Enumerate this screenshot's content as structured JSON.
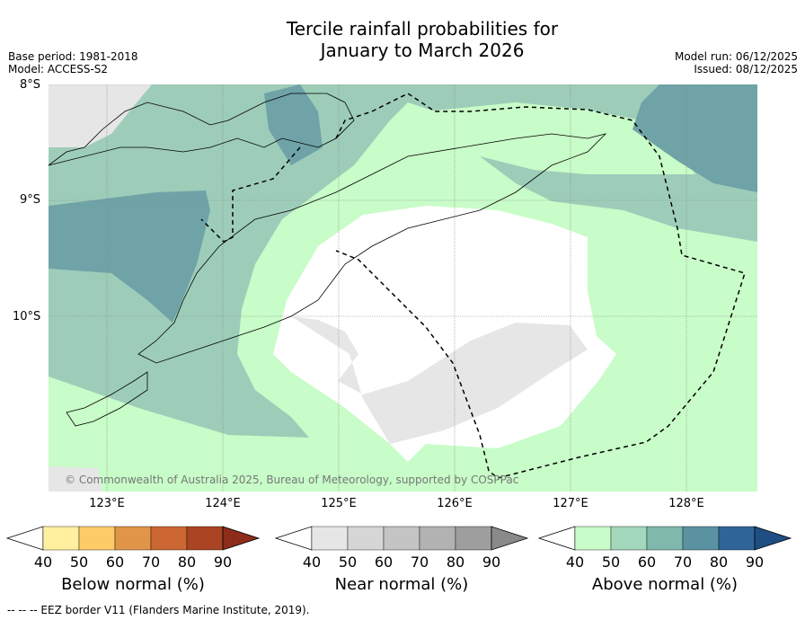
{
  "title_line1": "Tercile rainfall probabilities for",
  "title_line2": "January to March 2026",
  "base_period": "Base period: 1981-2018",
  "model": "Model: ACCESS-S2",
  "model_run": "Model run: 06/12/2025",
  "issued": "Issued: 08/12/2025",
  "lat_labels": [
    "8°S",
    "9°S",
    "10°S"
  ],
  "lon_labels": [
    "123°E",
    "124°E",
    "125°E",
    "126°E",
    "127°E",
    "128°E"
  ],
  "copyright": "© Commonwealth of Australia 2025, Bureau of Meteorology, supported by COSPPac",
  "footnote": "-- -- -- EEZ border V11 (Flanders Marine Institute, 2019).",
  "colorbars": [
    {
      "label": "Below normal (%)",
      "ticks": [
        "40",
        "50",
        "60",
        "70",
        "80",
        "90"
      ],
      "colors": [
        "#ffffff",
        "#fff0a0",
        "#fdcc66",
        "#e09548",
        "#cc6633",
        "#aa4422",
        "#8c2d19"
      ]
    },
    {
      "label": "Near normal (%)",
      "ticks": [
        "40",
        "50",
        "60",
        "70",
        "80",
        "90"
      ],
      "colors": [
        "#ffffff",
        "#e6e6e6",
        "#d6d6d6",
        "#c4c4c4",
        "#b2b2b2",
        "#9e9e9e",
        "#8a8a8a"
      ]
    },
    {
      "label": "Above normal (%)",
      "ticks": [
        "40",
        "50",
        "60",
        "70",
        "80",
        "90"
      ],
      "colors": [
        "#ffffff",
        "#c8fcc8",
        "#a4d8bc",
        "#80b8ac",
        "#5a92a2",
        "#2e6498",
        "#1e4e84"
      ]
    }
  ],
  "map_colors": {
    "above_40": "#c8fcc8",
    "above_50": "#9dcdb9",
    "above_60": "#6fa3a7",
    "near_40": "#e6e6e6",
    "land": "none"
  }
}
